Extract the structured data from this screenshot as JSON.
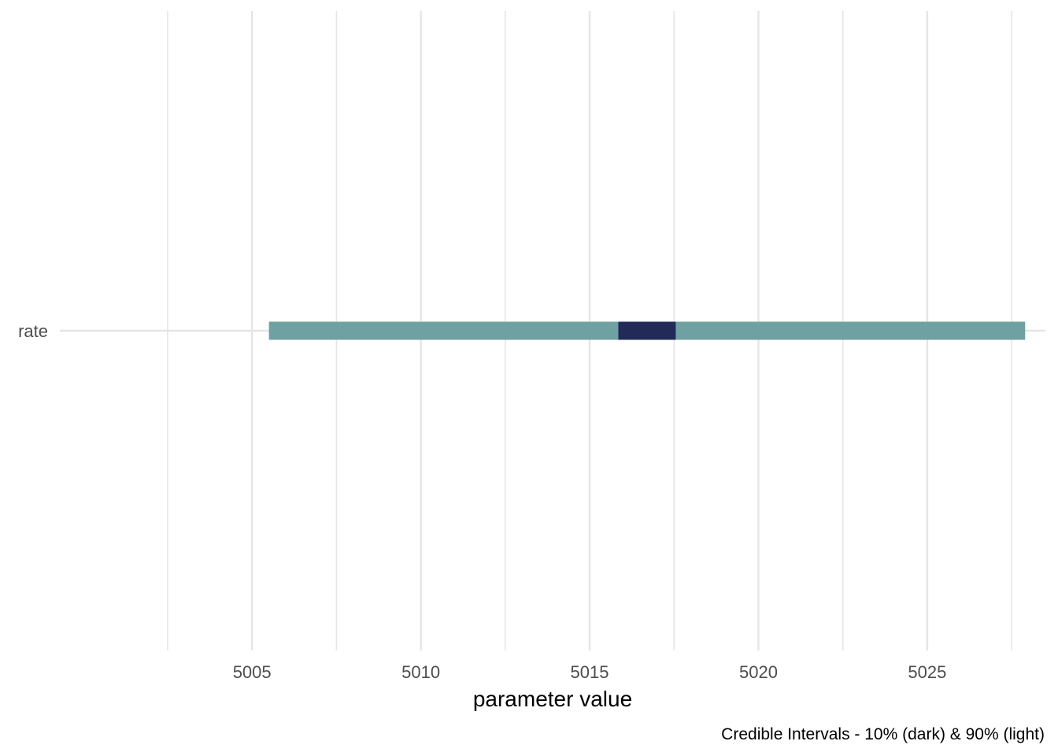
{
  "chart_data": {
    "type": "interval",
    "xlabel": "parameter value",
    "caption": "Credible Intervals - 10% (dark) & 90% (light)",
    "categories": [
      "rate"
    ],
    "x_ticks": [
      "5005",
      "5010",
      "5015",
      "5020",
      "5025"
    ],
    "xlim": [
      4999.4,
      5028.5
    ],
    "grid": true,
    "intervals": [
      {
        "category": "rate",
        "outer": [
          5005.5,
          5027.9
        ],
        "inner": [
          5015.85,
          5017.55
        ]
      }
    ],
    "colors": {
      "outer": "#6fa1a3",
      "inner": "#222a58",
      "grid": "#e5e5e5"
    }
  }
}
